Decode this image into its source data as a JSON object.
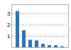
{
  "chart_data": {
    "type": "bar",
    "categories": [
      null,
      null,
      null,
      null,
      null,
      null,
      null,
      null
    ],
    "values": [
      3.2,
      1.5,
      0.65,
      0.6,
      0.3,
      0.18,
      0.17,
      0.08
    ],
    "color": "#2e75b6",
    "ylim": [
      0,
      3.8
    ],
    "yticks": [
      1,
      2,
      3
    ],
    "grid": true,
    "tick_labels": "y"
  }
}
